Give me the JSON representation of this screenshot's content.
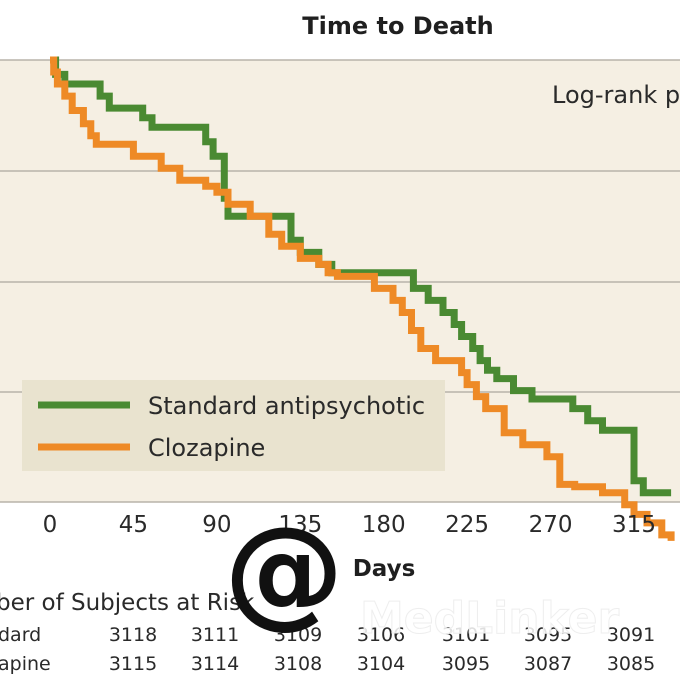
{
  "chart_data": {
    "type": "line",
    "title": "Time to Death",
    "xlabel": "Days",
    "annotation": "Log-rank p",
    "x_ticks": [
      0,
      45,
      90,
      135,
      180,
      225,
      270,
      315
    ],
    "xlim": [
      0,
      335
    ],
    "ylim": [
      0,
      1
    ],
    "grid": true,
    "legend_position": "bottom-left",
    "series": [
      {
        "name": "Standard antipsychotic",
        "color": "#4a8a32",
        "x": [
          0,
          3,
          8,
          27,
          32,
          50,
          55,
          84,
          88,
          94,
          96,
          108,
          130,
          135,
          145,
          152,
          175,
          196,
          204,
          212,
          218,
          222,
          228,
          232,
          236,
          241,
          250,
          260,
          282,
          290,
          298,
          315,
          320,
          335
        ],
        "y": [
          1.0,
          0.988,
          0.98,
          0.97,
          0.96,
          0.952,
          0.944,
          0.932,
          0.92,
          0.885,
          0.87,
          0.87,
          0.85,
          0.84,
          0.83,
          0.823,
          0.823,
          0.81,
          0.8,
          0.79,
          0.78,
          0.77,
          0.76,
          0.75,
          0.742,
          0.735,
          0.725,
          0.718,
          0.71,
          0.7,
          0.692,
          0.65,
          0.64,
          0.64
        ]
      },
      {
        "name": "Clozapine",
        "color": "#ee8a26",
        "x": [
          0,
          2,
          4,
          8,
          12,
          18,
          22,
          25,
          45,
          60,
          70,
          84,
          90,
          96,
          108,
          118,
          125,
          135,
          145,
          150,
          155,
          170,
          175,
          185,
          190,
          195,
          200,
          208,
          222,
          225,
          230,
          235,
          245,
          255,
          268,
          275,
          283,
          298,
          310,
          315,
          322,
          330,
          335
        ],
        "y": [
          1.0,
          0.99,
          0.98,
          0.97,
          0.958,
          0.947,
          0.937,
          0.93,
          0.92,
          0.91,
          0.9,
          0.895,
          0.89,
          0.88,
          0.87,
          0.855,
          0.845,
          0.835,
          0.83,
          0.823,
          0.82,
          0.82,
          0.81,
          0.8,
          0.79,
          0.775,
          0.76,
          0.75,
          0.74,
          0.73,
          0.72,
          0.71,
          0.69,
          0.68,
          0.67,
          0.647,
          0.645,
          0.64,
          0.63,
          0.622,
          0.615,
          0.605,
          0.6
        ]
      }
    ],
    "risk_table": {
      "title": "ber of Subjects at Risk",
      "rows": [
        {
          "label": "dard",
          "values": [
            "3118",
            "3111",
            "3109",
            "3106",
            "3101",
            "3095",
            "3091"
          ]
        },
        {
          "label": "apine",
          "values": [
            "3115",
            "3114",
            "3108",
            "3104",
            "3095",
            "3087",
            "3085"
          ]
        }
      ]
    }
  },
  "watermark": {
    "symbol": "@",
    "text": "MedLinker"
  }
}
